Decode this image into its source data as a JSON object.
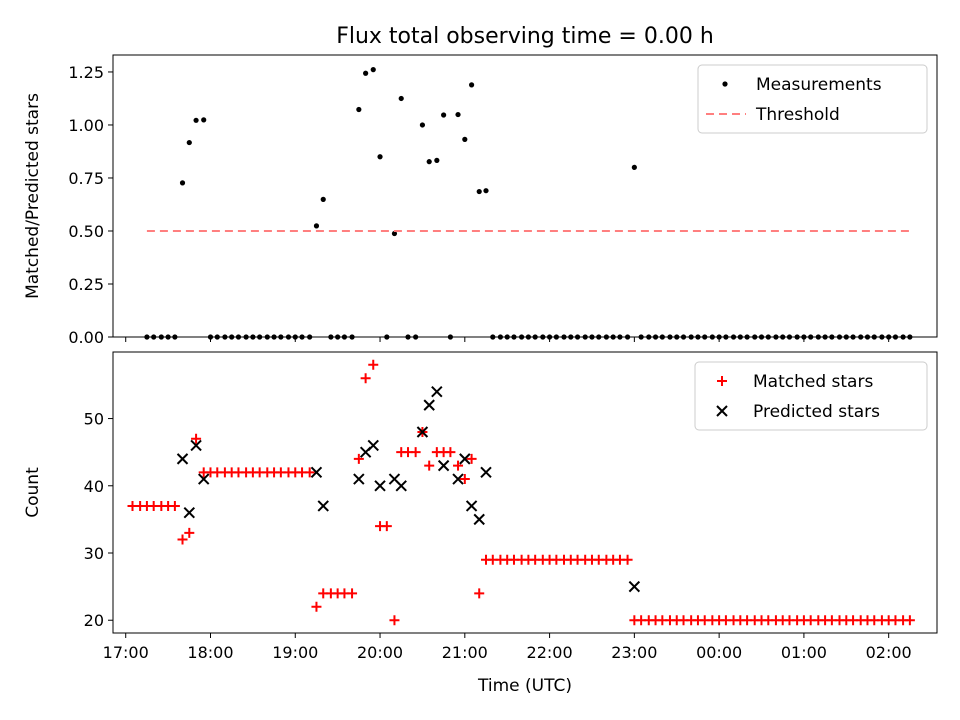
{
  "chart_data": [
    {
      "type": "scatter",
      "title": "Flux total observing time = 0.00 h",
      "xlabel": "",
      "ylabel": "Matched/Predicted stars",
      "xlim": [
        16.85,
        26.57
      ],
      "ylim": [
        0.0,
        1.33
      ],
      "yticks": [
        0.0,
        0.25,
        0.5,
        0.75,
        1.0,
        1.25
      ],
      "ytick_labels": [
        "0.00",
        "0.25",
        "0.50",
        "0.75",
        "1.00",
        "1.25"
      ],
      "legend_position": "top-right",
      "series": [
        {
          "name": "Measurements",
          "marker": "dot",
          "color": "#000000",
          "x": [
            17.25,
            17.33,
            17.42,
            17.5,
            17.58,
            17.67,
            17.75,
            17.83,
            17.92,
            18.0,
            18.08,
            18.17,
            18.25,
            18.33,
            18.42,
            18.5,
            18.58,
            18.67,
            18.75,
            18.83,
            18.92,
            19.0,
            19.08,
            19.17,
            19.25,
            19.33,
            19.42,
            19.5,
            19.58,
            19.67,
            19.75,
            19.83,
            19.92,
            20.0,
            20.08,
            20.17,
            20.25,
            20.33,
            20.42,
            20.5,
            20.58,
            20.67,
            20.75,
            20.83,
            20.92,
            21.0,
            21.08,
            21.17,
            21.25,
            21.33,
            21.42,
            21.5,
            21.58,
            21.67,
            21.75,
            21.83,
            21.92,
            22.0,
            22.08,
            22.17,
            22.25,
            22.33,
            22.42,
            22.5,
            22.58,
            22.67,
            22.75,
            22.83,
            22.92,
            23.0,
            23.08,
            23.17,
            23.25,
            23.33,
            23.42,
            23.5,
            23.58,
            23.67,
            23.75,
            23.83,
            23.92,
            24.0,
            24.08,
            24.17,
            24.25,
            24.33,
            24.42,
            24.5,
            24.58,
            24.67,
            24.75,
            24.83,
            24.92,
            25.0,
            25.08,
            25.17,
            25.25,
            25.33,
            25.42,
            25.5,
            25.58,
            25.67,
            25.75,
            25.83,
            25.92,
            26.0,
            26.08,
            26.17,
            26.25
          ],
          "values": [
            0,
            0,
            0,
            0,
            0,
            0.727,
            0.917,
            1.022,
            1.024,
            0,
            0,
            0,
            0,
            0,
            0,
            0,
            0,
            0,
            0,
            0,
            0,
            0,
            0,
            0,
            0.524,
            0.649,
            0,
            0,
            0,
            0,
            1.073,
            1.244,
            1.261,
            0.85,
            0,
            0.488,
            1.125,
            0,
            0,
            1.0,
            0.827,
            0.833,
            1.047,
            0,
            1.049,
            0.932,
            1.189,
            0.686,
            0.69,
            0,
            0,
            0,
            0,
            0,
            0,
            0,
            0,
            0,
            0,
            0,
            0,
            0,
            0,
            0,
            0,
            0,
            0,
            0,
            0,
            0.8,
            0,
            0,
            0,
            0,
            0,
            0,
            0,
            0,
            0,
            0,
            0,
            0,
            0,
            0,
            0,
            0,
            0,
            0,
            0,
            0,
            0,
            0,
            0,
            0,
            0,
            0,
            0,
            0,
            0,
            0,
            0,
            0,
            0,
            0,
            0,
            0,
            0,
            0,
            0
          ]
        },
        {
          "name": "Threshold",
          "marker": "dashed-line",
          "color": "#ff7f7f",
          "x": [
            17.25,
            26.25
          ],
          "values": [
            0.5,
            0.5
          ]
        }
      ]
    },
    {
      "type": "scatter",
      "title": "",
      "xlabel": "Time (UTC)",
      "ylabel": "Count",
      "xlim": [
        16.85,
        26.57
      ],
      "ylim": [
        18.1,
        59.9
      ],
      "yticks": [
        20,
        30,
        40,
        50
      ],
      "ytick_labels": [
        "20",
        "30",
        "40",
        "50"
      ],
      "xticks": [
        17,
        18,
        19,
        20,
        21,
        22,
        23,
        24,
        25,
        26
      ],
      "xtick_labels": [
        "17:00",
        "18:00",
        "19:00",
        "20:00",
        "21:00",
        "22:00",
        "23:00",
        "00:00",
        "01:00",
        "02:00"
      ],
      "legend_position": "top-right",
      "series": [
        {
          "name": "Matched stars",
          "marker": "plus",
          "color": "#ff0000",
          "x": [
            17.08,
            17.17,
            17.25,
            17.33,
            17.42,
            17.5,
            17.58,
            17.67,
            17.75,
            17.83,
            17.92,
            18.0,
            18.08,
            18.17,
            18.25,
            18.33,
            18.42,
            18.5,
            18.58,
            18.67,
            18.75,
            18.83,
            18.92,
            19.0,
            19.08,
            19.17,
            19.25,
            19.33,
            19.42,
            19.5,
            19.58,
            19.67,
            19.75,
            19.83,
            19.92,
            20.0,
            20.08,
            20.17,
            20.25,
            20.33,
            20.42,
            20.5,
            20.58,
            20.67,
            20.75,
            20.83,
            20.92,
            21.0,
            21.08,
            21.17,
            21.25,
            21.33,
            21.42,
            21.5,
            21.58,
            21.67,
            21.75,
            21.83,
            21.92,
            22.0,
            22.08,
            22.17,
            22.25,
            22.33,
            22.42,
            22.5,
            22.58,
            22.67,
            22.75,
            22.83,
            22.92,
            23.0,
            23.08,
            23.17,
            23.25,
            23.33,
            23.42,
            23.5,
            23.58,
            23.67,
            23.75,
            23.83,
            23.92,
            24.0,
            24.08,
            24.17,
            24.25,
            24.33,
            24.42,
            24.5,
            24.58,
            24.67,
            24.75,
            24.83,
            24.92,
            25.0,
            25.08,
            25.17,
            25.25,
            25.33,
            25.42,
            25.5,
            25.58,
            25.67,
            25.75,
            25.83,
            25.92,
            26.0,
            26.08,
            26.17,
            26.25
          ],
          "values": [
            37,
            37,
            37,
            37,
            37,
            37,
            37,
            32,
            33,
            47,
            42,
            42,
            42,
            42,
            42,
            42,
            42,
            42,
            42,
            42,
            42,
            42,
            42,
            42,
            42,
            42,
            22,
            24,
            24,
            24,
            24,
            24,
            44,
            56,
            58,
            34,
            34,
            20,
            45,
            45,
            45,
            48,
            43,
            45,
            45,
            45,
            43,
            41,
            44,
            24,
            29,
            29,
            29,
            29,
            29,
            29,
            29,
            29,
            29,
            29,
            29,
            29,
            29,
            29,
            29,
            29,
            29,
            29,
            29,
            29,
            29,
            20,
            20,
            20,
            20,
            20,
            20,
            20,
            20,
            20,
            20,
            20,
            20,
            20,
            20,
            20,
            20,
            20,
            20,
            20,
            20,
            20,
            20,
            20,
            20,
            20,
            20,
            20,
            20,
            20,
            20,
            20,
            20,
            20,
            20,
            20,
            20,
            20,
            20,
            20,
            20
          ]
        },
        {
          "name": "Predicted stars",
          "marker": "x",
          "color": "#000000",
          "x": [
            17.67,
            17.75,
            17.83,
            17.92,
            19.25,
            19.33,
            19.75,
            19.83,
            19.92,
            20.0,
            20.17,
            20.25,
            20.5,
            20.58,
            20.67,
            20.75,
            20.92,
            21.0,
            21.08,
            21.17,
            21.25,
            23.0
          ],
          "values": [
            44,
            36,
            46,
            41,
            42,
            37,
            41,
            45,
            46,
            40,
            41,
            40,
            48,
            52,
            54,
            43,
            41,
            44,
            37,
            35,
            42,
            25
          ]
        }
      ]
    }
  ]
}
